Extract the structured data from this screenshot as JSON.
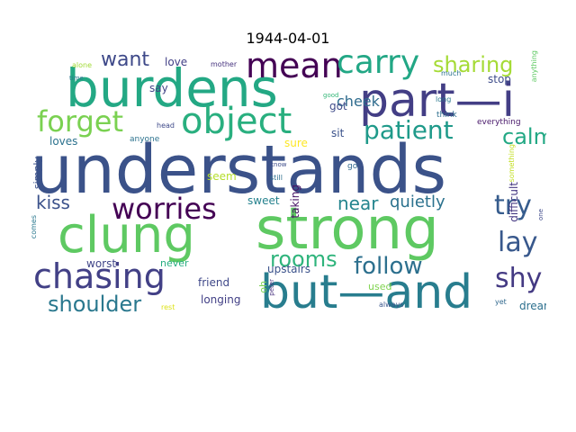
{
  "title": "1944-04-01",
  "words": [
    {
      "text": "understands",
      "color": "#3b5289"
    },
    {
      "text": "strong",
      "color": "#5ec962"
    },
    {
      "text": "clung",
      "color": "#5ec962"
    },
    {
      "text": "burdens",
      "color": "#23a884"
    },
    {
      "text": "part—i",
      "color": "#433e85"
    },
    {
      "text": "but—and",
      "color": "#287d8e"
    },
    {
      "text": "mean",
      "color": "#440154"
    },
    {
      "text": "object",
      "color": "#29af7f"
    },
    {
      "text": "chasing",
      "color": "#424086"
    },
    {
      "text": "carry",
      "color": "#22a785"
    },
    {
      "text": "forget",
      "color": "#7ad151"
    },
    {
      "text": "worries",
      "color": "#440154"
    },
    {
      "text": "patient",
      "color": "#1f9a8a"
    },
    {
      "text": "sharing",
      "color": "#a5db36"
    },
    {
      "text": "try",
      "color": "#365c8d"
    },
    {
      "text": "lay",
      "color": "#38588c"
    },
    {
      "text": "calm",
      "color": "#22a884"
    },
    {
      "text": "shy",
      "color": "#443a83"
    },
    {
      "text": "follow",
      "color": "#2d708e"
    },
    {
      "text": "rooms",
      "color": "#2fb47c"
    },
    {
      "text": "shoulder",
      "color": "#2a788e"
    },
    {
      "text": "want",
      "color": "#3e4989"
    },
    {
      "text": "kiss",
      "color": "#3b528b"
    },
    {
      "text": "near",
      "color": "#25858e"
    },
    {
      "text": "quietly",
      "color": "#2c728e"
    },
    {
      "text": "cheek",
      "color": "#2f6c8e"
    },
    {
      "text": "stop",
      "color": "#3e4c8a"
    },
    {
      "text": "love",
      "color": "#424086"
    },
    {
      "text": "say",
      "color": "#414487"
    },
    {
      "text": "got",
      "color": "#3e4a89"
    },
    {
      "text": "sit",
      "color": "#3b528b"
    },
    {
      "text": "sure",
      "color": "#fde725"
    },
    {
      "text": "seem",
      "color": "#b5de2b"
    },
    {
      "text": "sweet",
      "color": "#26828e"
    },
    {
      "text": "loves",
      "color": "#2c728e"
    },
    {
      "text": "anyone",
      "color": "#2c728e"
    },
    {
      "text": "worst",
      "color": "#404588"
    },
    {
      "text": "never",
      "color": "#27ad81"
    },
    {
      "text": "friend",
      "color": "#3f4889"
    },
    {
      "text": "longing",
      "color": "#424086"
    },
    {
      "text": "upstairs",
      "color": "#3b528b"
    },
    {
      "text": "used",
      "color": "#7fd34e"
    },
    {
      "text": "dream",
      "color": "#2d708e"
    },
    {
      "text": "alone",
      "color": "#a2da37"
    },
    {
      "text": "mother",
      "color": "#46337e"
    },
    {
      "text": "head",
      "color": "#3e4989"
    },
    {
      "text": "much",
      "color": "#2c728e"
    },
    {
      "text": "long",
      "color": "#2a788e"
    },
    {
      "text": "think",
      "color": "#2e6f8e"
    },
    {
      "text": "good",
      "color": "#35b779"
    },
    {
      "text": "everything",
      "color": "#48186a"
    },
    {
      "text": "still",
      "color": "#2d708e"
    },
    {
      "text": "know",
      "color": "#3e4c8a"
    },
    {
      "text": "go",
      "color": "#31688e"
    },
    {
      "text": "time",
      "color": "#2a788e"
    },
    {
      "text": "rest",
      "color": "#dde318"
    },
    {
      "text": "always",
      "color": "#39568c"
    },
    {
      "text": "yet",
      "color": "#31688e"
    },
    {
      "text": "simply",
      "color": "#3b528b"
    },
    {
      "text": "comes",
      "color": "#2a788e"
    },
    {
      "text": "taking",
      "color": "#471365"
    },
    {
      "text": "oh",
      "color": "#7ad151"
    },
    {
      "text": "peter",
      "color": "#46307e"
    },
    {
      "text": "difficult",
      "color": "#453882"
    },
    {
      "text": "something",
      "color": "#c2df23"
    },
    {
      "text": "one",
      "color": "#3e4989"
    },
    {
      "text": "anything",
      "color": "#5ec962"
    }
  ]
}
